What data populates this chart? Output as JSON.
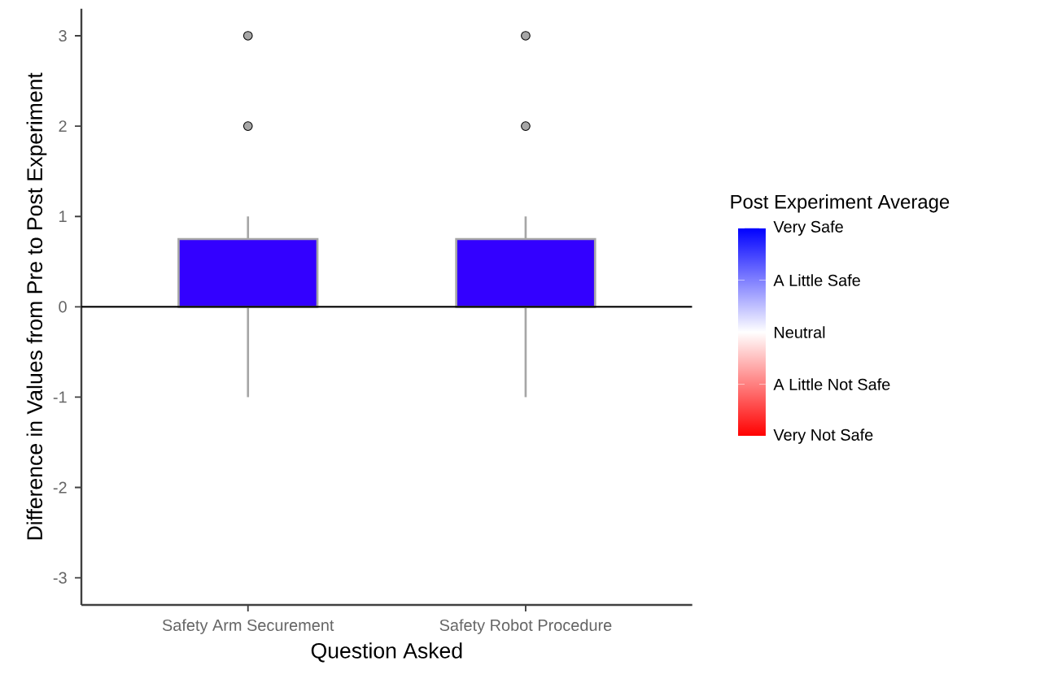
{
  "chart_data": {
    "type": "box",
    "xlabel": "Question Asked",
    "ylabel": "Difference in Values from Pre to Post Experiment",
    "categories": [
      "Safety Arm Securement",
      "Safety Robot Procedure"
    ],
    "series": [
      {
        "color": "#3300ff",
        "boxes": [
          {
            "low": -1,
            "q1": 0,
            "median": 0,
            "q3": 0.75,
            "high": 1,
            "outliers": [
              2,
              3
            ]
          },
          {
            "low": -1,
            "q1": 0,
            "median": 0,
            "q3": 0.75,
            "high": 1,
            "outliers": [
              2,
              3
            ]
          }
        ]
      }
    ],
    "ylim": [
      -3.3,
      3.3
    ],
    "yticks": [
      -3,
      -2,
      -1,
      0,
      1,
      2,
      3
    ],
    "ref_lines": [
      {
        "axis": "y",
        "value": 0,
        "color": "#000000"
      }
    ],
    "clabel": "Post Experiment Average",
    "clim": [
      1,
      5
    ],
    "cticks": [
      {
        "value": 1,
        "label": "Very Not Safe"
      },
      {
        "value": 2,
        "label": "A Little Not Safe"
      },
      {
        "value": 3,
        "label": "Neutral"
      },
      {
        "value": 4,
        "label": "A Little Safe"
      },
      {
        "value": 5,
        "label": "Very Safe"
      }
    ]
  }
}
